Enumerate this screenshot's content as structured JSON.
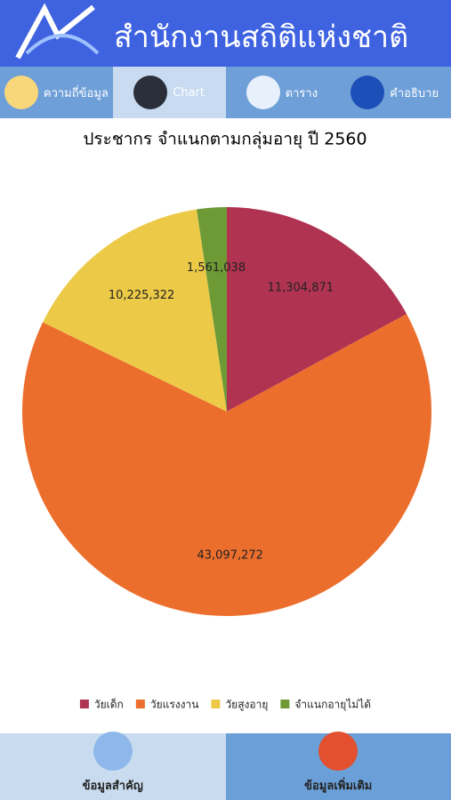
{
  "header": {
    "title": "สำนักงานสถิติแห่งชาติ"
  },
  "tabs": [
    "ความถี่ข้อมูล",
    "Chart",
    "ตาราง",
    "คำอธิบาย"
  ],
  "chart_data": {
    "type": "pie",
    "title": "ประชากร จำแนกตามกลุ่มอายุ ปี 2560",
    "categories": [
      "วัยเด็ก",
      "วัยแรงงาน",
      "วัยสูงอายุ",
      "จำแนกอายุไม่ได้"
    ],
    "values": [
      11304871,
      43097272,
      10225322,
      1561038
    ],
    "value_labels": [
      "11,304,871",
      "43,097,272",
      "10,225,322",
      "1,561,038"
    ],
    "colors": [
      "#b03352",
      "#ec6e2d",
      "#ecca48",
      "#6e9a36"
    ],
    "legend": "bottom"
  },
  "bottom_nav": [
    "ข้อมูลสำคัญ",
    "ข้อมูลเพิ่มเติม"
  ]
}
